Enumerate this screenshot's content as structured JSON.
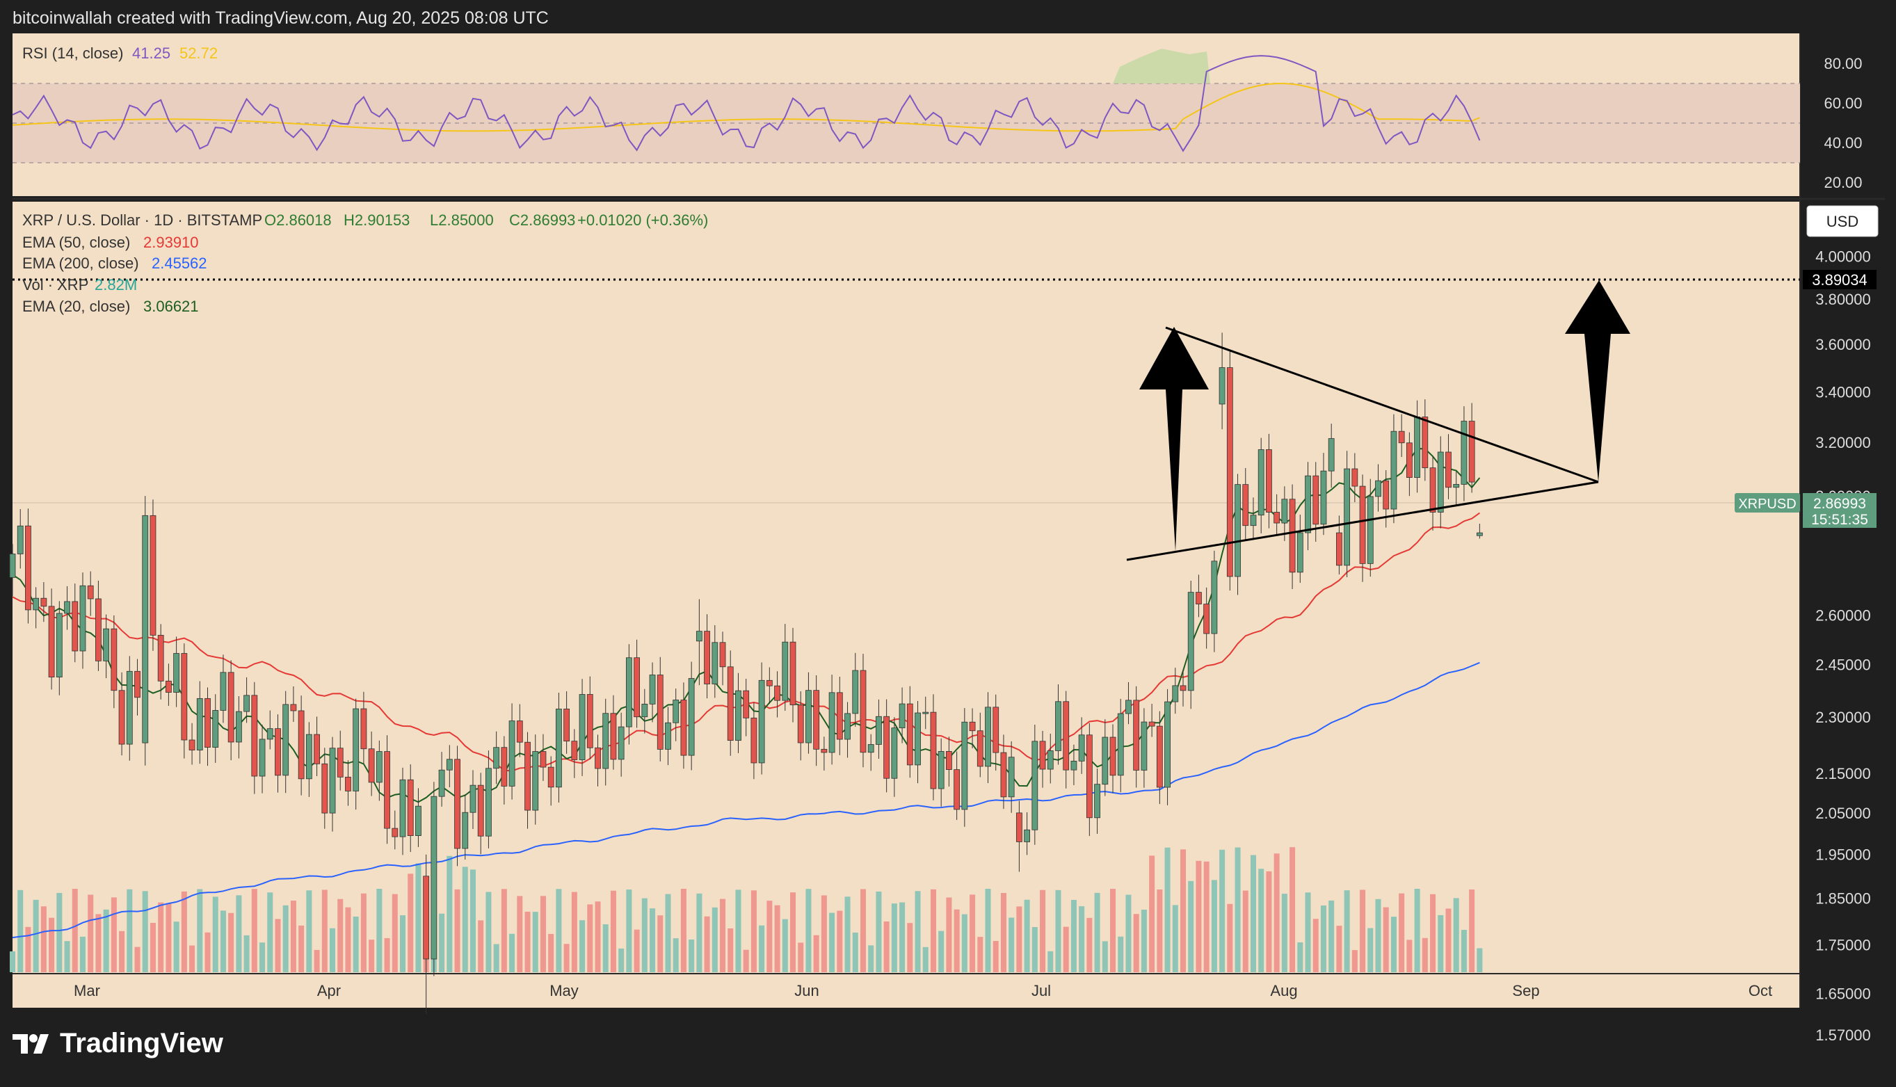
{
  "header": {
    "attribution": "bitcoinwallah created with TradingView.com, Aug 20, 2025 08:08 UTC"
  },
  "footer": {
    "brand": "TradingView",
    "logo_icon": "tradingview-logo-icon"
  },
  "rsi_panel": {
    "legend_title": "RSI (14, close)",
    "rsi_value": "41.25",
    "ma_value": "52.72",
    "colors": {
      "rsi": "#7e57c2",
      "ma": "#f5c518"
    },
    "axis_ticks": [
      "80.00",
      "60.00",
      "40.00",
      "20.00"
    ]
  },
  "price_panel": {
    "symbol_line": {
      "title": "XRP / U.S. Dollar · 1D · BITSTAMP",
      "open": "O2.86018",
      "high": "H2.90153",
      "low": "L2.85000",
      "close": "C2.86993",
      "change": "+0.01020 (+0.36%)"
    },
    "indicators": [
      {
        "label": "EMA (50, close)",
        "value": "2.93910",
        "color": "#e53935"
      },
      {
        "label": "EMA (200, close)",
        "value": "2.45562",
        "color": "#2962ff"
      },
      {
        "label": "Vol · XRP",
        "value": "2.82M",
        "color": "#26a69a"
      },
      {
        "label": "EMA (20, close)",
        "value": "3.06621",
        "color": "#1b5e20"
      }
    ],
    "currency_button": "USD",
    "axis_ticks": [
      "4.00000",
      "3.80000",
      "3.60000",
      "3.40000",
      "3.20000",
      "3.00000",
      "2.60000",
      "2.45000",
      "2.30000",
      "2.15000",
      "2.05000",
      "1.95000",
      "1.85000",
      "1.75000",
      "1.65000",
      "1.57000"
    ],
    "target_price_label": "3.89034",
    "last_price_tag": {
      "symbol": "XRPUSD",
      "price": "2.86993",
      "countdown": "15:51:35"
    },
    "x_axis_labels": [
      "Mar",
      "Apr",
      "May",
      "Jun",
      "Jul",
      "Aug",
      "Sep",
      "Oct"
    ]
  },
  "chart_data": {
    "type": "candlestick",
    "scale": "log",
    "timeframe": "1D",
    "date_range": [
      "2025-02-13",
      "2025-08-20"
    ],
    "ylim": [
      1.53,
      4.15
    ],
    "target_level": 3.89034,
    "last_price": 2.86993,
    "ohlc_ohlc_note_keys": [
      "o",
      "h",
      "l",
      "c"
    ],
    "ohlc_sample": [
      {
        "date": "2025-03-02",
        "o": 2.23,
        "h": 3.0,
        "l": 2.17,
        "c": 2.93
      },
      {
        "date": "2025-04-07",
        "o": 1.9,
        "h": 1.95,
        "l": 1.61,
        "c": 1.72
      },
      {
        "date": "2025-05-12",
        "o": 2.52,
        "h": 2.65,
        "l": 2.39,
        "c": 2.55
      },
      {
        "date": "2025-06-22",
        "o": 2.05,
        "h": 2.08,
        "l": 1.91,
        "c": 1.98
      },
      {
        "date": "2025-07-18",
        "o": 3.35,
        "h": 3.65,
        "l": 3.25,
        "c": 3.5
      },
      {
        "date": "2025-08-02",
        "o": 2.87,
        "h": 2.93,
        "l": 2.73,
        "c": 2.76
      },
      {
        "date": "2025-08-20",
        "o": 2.86018,
        "h": 2.90153,
        "l": 2.85,
        "c": 2.86993
      }
    ],
    "ema20_keypoints": [
      {
        "date": "2025-02-13",
        "v": 2.73
      },
      {
        "date": "2025-03-01",
        "v": 2.39
      },
      {
        "date": "2025-04-08",
        "v": 2.07
      },
      {
        "date": "2025-05-13",
        "v": 2.39
      },
      {
        "date": "2025-06-23",
        "v": 2.15
      },
      {
        "date": "2025-07-10",
        "v": 2.25
      },
      {
        "date": "2025-07-20",
        "v": 2.92
      },
      {
        "date": "2025-08-03",
        "v": 3.01
      },
      {
        "date": "2025-08-14",
        "v": 3.14
      },
      {
        "date": "2025-08-20",
        "v": 3.06621
      }
    ],
    "ema50_keypoints": [
      {
        "date": "2025-02-13",
        "v": 2.65
      },
      {
        "date": "2025-03-20",
        "v": 2.42
      },
      {
        "date": "2025-04-20",
        "v": 2.15
      },
      {
        "date": "2025-05-20",
        "v": 2.35
      },
      {
        "date": "2025-06-25",
        "v": 2.2
      },
      {
        "date": "2025-07-20",
        "v": 2.5
      },
      {
        "date": "2025-08-03",
        "v": 2.72
      },
      {
        "date": "2025-08-20",
        "v": 2.9391
      }
    ],
    "ema200_keypoints": [
      {
        "date": "2025-02-13",
        "v": 1.76
      },
      {
        "date": "2025-03-15",
        "v": 1.88
      },
      {
        "date": "2025-04-15",
        "v": 1.95
      },
      {
        "date": "2025-05-15",
        "v": 2.03
      },
      {
        "date": "2025-06-15",
        "v": 2.07
      },
      {
        "date": "2025-07-10",
        "v": 2.11
      },
      {
        "date": "2025-07-25",
        "v": 2.22
      },
      {
        "date": "2025-08-20",
        "v": 2.45562
      }
    ],
    "triangle_pattern": {
      "upper_trendline": [
        {
          "date": "2025-07-18",
          "v": 3.65
        },
        {
          "date": "2025-09-09",
          "v": 2.96
        }
      ],
      "lower_trendline": [
        {
          "date": "2025-07-13",
          "v": 2.71
        },
        {
          "date": "2025-08-20",
          "v": 2.88
        }
      ],
      "pole_arrow": {
        "from": 2.73,
        "to": 3.65
      },
      "target_arrow": {
        "from": 2.96,
        "to": 3.89034
      }
    },
    "rsi": {
      "current": 41.25,
      "ma_current": 52.72,
      "bands": [
        30,
        70
      ],
      "midline": 50
    }
  }
}
